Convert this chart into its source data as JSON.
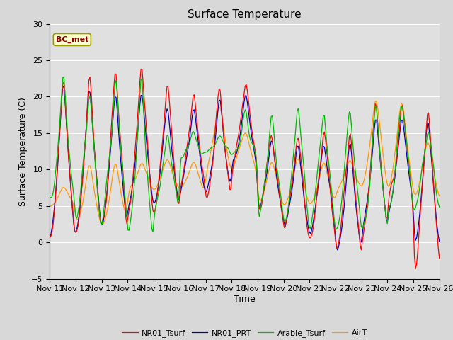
{
  "title": "Surface Temperature",
  "xlabel": "Time",
  "ylabel": "Surface Temperature (C)",
  "ylim": [
    -5,
    30
  ],
  "annotation": "BC_met",
  "legend": [
    "NR01_Tsurf",
    "NR01_PRT",
    "Arable_Tsurf",
    "AirT"
  ],
  "colors": [
    "#ff0000",
    "#0000bb",
    "#00bb00",
    "#ff9900"
  ],
  "xtick_labels": [
    "Nov 11",
    "Nov 12",
    "Nov 13",
    "Nov 14",
    "Nov 15",
    "Nov 16",
    "Nov 17",
    "Nov 18",
    "Nov 19",
    "Nov 20",
    "Nov 21",
    "Nov 22",
    "Nov 23",
    "Nov 24",
    "Nov 25",
    "Nov 26"
  ],
  "ytick_vals": [
    -5,
    0,
    5,
    10,
    15,
    20,
    25,
    30
  ],
  "bg_color": "#e8e8e8",
  "grid_color": "#ffffff",
  "fig_width": 6.4,
  "fig_height": 4.8,
  "dpi": 100
}
